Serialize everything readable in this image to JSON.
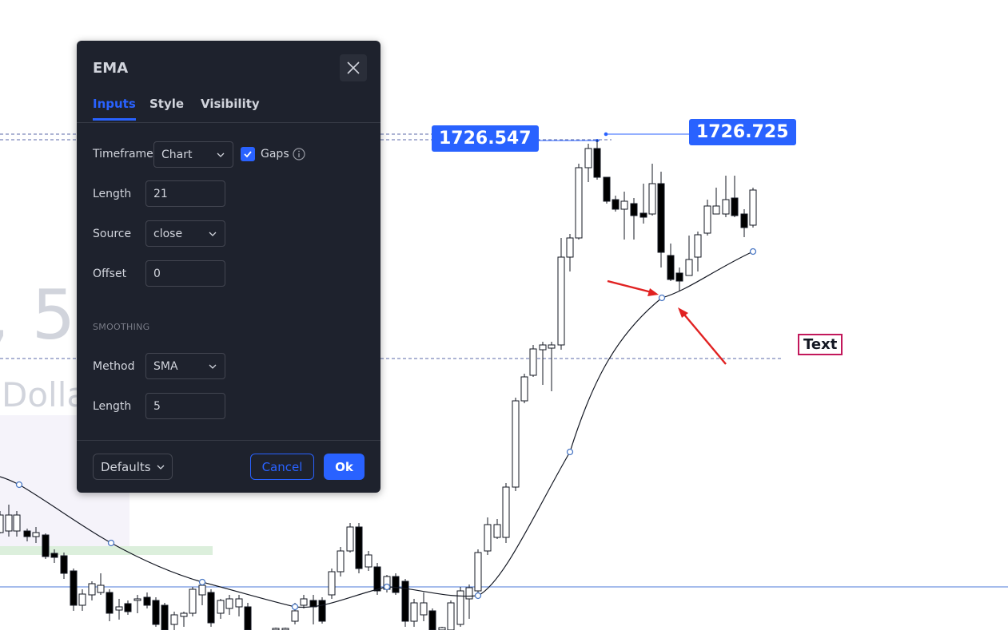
{
  "chart": {
    "type": "candlestick",
    "series": [
      {
        "type": "candlestick"
      },
      {
        "type": "ema_line",
        "color": "#131722"
      }
    ],
    "colors": {
      "up": "#ffffff",
      "down": "#000000",
      "ema_line": "#131722",
      "accent": "#2962ff"
    },
    "price_labels": [
      "1726.547",
      "1726.725"
    ],
    "text_label": "Text",
    "background_text_big": ", 5",
    "background_text_small": "Dolla"
  },
  "dialog": {
    "title": "EMA",
    "close_icon": "close-icon",
    "tabs": [
      "Inputs",
      "Style",
      "Visibility"
    ],
    "active_tab": "Inputs",
    "inputs": {
      "timeframe_label": "Timeframe",
      "timeframe_value": "Chart",
      "gaps_checked": true,
      "gaps_label": "Gaps",
      "info_icon": "info-icon",
      "length_label": "Length",
      "length_value": "21",
      "source_label": "Source",
      "source_value": "close",
      "offset_label": "Offset",
      "offset_value": "0"
    },
    "smoothing": {
      "section_title": "SMOOTHING",
      "method_label": "Method",
      "method_value": "SMA",
      "length_label": "Length",
      "length_value": "5"
    },
    "footer": {
      "defaults_label": "Defaults",
      "cancel_label": "Cancel",
      "ok_label": "Ok"
    }
  }
}
